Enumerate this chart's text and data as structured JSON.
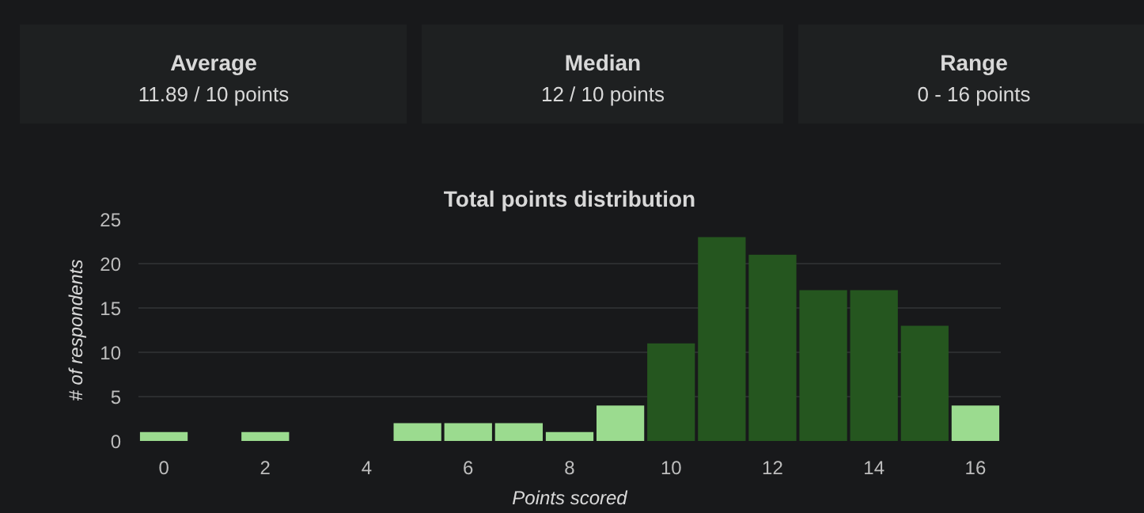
{
  "chart_data": [
    {
      "type": "other",
      "title": "Average",
      "subtitle": "11.89 / 10 points"
    },
    {
      "type": "other",
      "title": "Median",
      "subtitle": "12 / 10 points"
    },
    {
      "type": "other",
      "title": "Range",
      "subtitle": "0 - 16 points"
    },
    {
      "type": "bar",
      "title": "Total points distribution",
      "xlabel": "Points scored",
      "ylabel": "# of respondents",
      "categories": [
        "0",
        null,
        "2",
        null,
        "4",
        null,
        "6",
        null,
        "8",
        null,
        "10",
        null,
        "12",
        null,
        "14",
        null,
        "16"
      ],
      "values": [
        1,
        0,
        1,
        0,
        0,
        2,
        2,
        2,
        1,
        4,
        11,
        23,
        21,
        17,
        17,
        13,
        4
      ],
      "colors": [
        "#9bdb8f",
        "#9bdb8f",
        "#9bdb8f",
        "#9bdb8f",
        "#9bdb8f",
        "#9bdb8f",
        "#9bdb8f",
        "#9bdb8f",
        "#9bdb8f",
        "#9bdb8f",
        "#25561f",
        "#25561f",
        "#25561f",
        "#25561f",
        "#25561f",
        "#25561f",
        "#9bdb8f"
      ],
      "ylim": [
        0,
        25
      ],
      "yticks": [
        0,
        5,
        10,
        15,
        20,
        25
      ],
      "grid": "y"
    }
  ]
}
